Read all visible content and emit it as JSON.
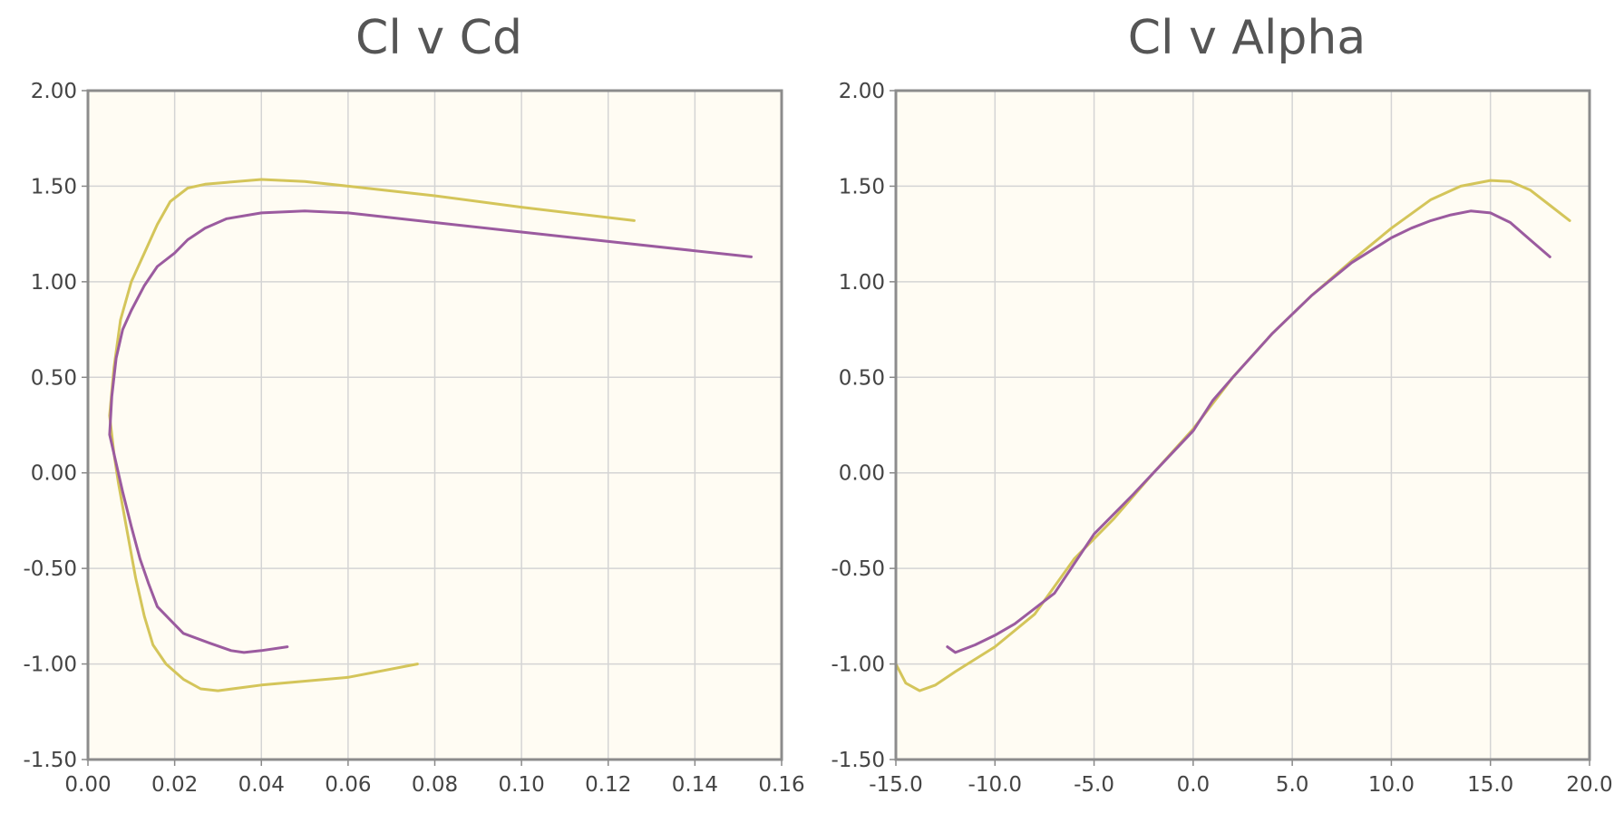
{
  "chart_data": [
    {
      "type": "line",
      "title": "Cl v Cd",
      "xlabel": "",
      "ylabel": "",
      "xlim": [
        0.0,
        0.16
      ],
      "ylim": [
        -1.5,
        2.0
      ],
      "x_ticks": [
        "0.00",
        "0.02",
        "0.04",
        "0.06",
        "0.08",
        "0.10",
        "0.12",
        "0.14",
        "0.16"
      ],
      "y_ticks": [
        "2.00",
        "1.50",
        "1.00",
        "0.50",
        "0.00",
        "-0.50",
        "-1.00",
        "-1.50"
      ],
      "grid": true,
      "background": "#fffcf3",
      "series": [
        {
          "color": "#d4c55a",
          "points": [
            [
              0.076,
              -1.0
            ],
            [
              0.06,
              -1.07
            ],
            [
              0.04,
              -1.11
            ],
            [
              0.03,
              -1.14
            ],
            [
              0.026,
              -1.13
            ],
            [
              0.022,
              -1.08
            ],
            [
              0.018,
              -1.0
            ],
            [
              0.015,
              -0.9
            ],
            [
              0.013,
              -0.75
            ],
            [
              0.011,
              -0.55
            ],
            [
              0.009,
              -0.3
            ],
            [
              0.007,
              -0.05
            ],
            [
              0.006,
              0.1
            ],
            [
              0.005,
              0.3
            ],
            [
              0.006,
              0.55
            ],
            [
              0.0075,
              0.8
            ],
            [
              0.01,
              1.0
            ],
            [
              0.013,
              1.15
            ],
            [
              0.016,
              1.3
            ],
            [
              0.019,
              1.42
            ],
            [
              0.023,
              1.49
            ],
            [
              0.027,
              1.51
            ],
            [
              0.032,
              1.52
            ],
            [
              0.04,
              1.535
            ],
            [
              0.05,
              1.525
            ],
            [
              0.06,
              1.5
            ],
            [
              0.08,
              1.45
            ],
            [
              0.1,
              1.39
            ],
            [
              0.126,
              1.32
            ]
          ]
        },
        {
          "color": "#9b5b9f",
          "points": [
            [
              0.046,
              -0.91
            ],
            [
              0.04,
              -0.93
            ],
            [
              0.036,
              -0.94
            ],
            [
              0.033,
              -0.93
            ],
            [
              0.028,
              -0.89
            ],
            [
              0.022,
              -0.84
            ],
            [
              0.019,
              -0.77
            ],
            [
              0.016,
              -0.7
            ],
            [
              0.014,
              -0.58
            ],
            [
              0.012,
              -0.45
            ],
            [
              0.01,
              -0.28
            ],
            [
              0.008,
              -0.1
            ],
            [
              0.0065,
              0.05
            ],
            [
              0.005,
              0.2
            ],
            [
              0.0055,
              0.4
            ],
            [
              0.0065,
              0.6
            ],
            [
              0.008,
              0.75
            ],
            [
              0.01,
              0.85
            ],
            [
              0.013,
              0.98
            ],
            [
              0.016,
              1.08
            ],
            [
              0.02,
              1.15
            ],
            [
              0.023,
              1.22
            ],
            [
              0.027,
              1.28
            ],
            [
              0.032,
              1.33
            ],
            [
              0.04,
              1.36
            ],
            [
              0.05,
              1.37
            ],
            [
              0.06,
              1.36
            ],
            [
              0.08,
              1.31
            ],
            [
              0.1,
              1.26
            ],
            [
              0.153,
              1.13
            ]
          ]
        }
      ]
    },
    {
      "type": "line",
      "title": "Cl v Alpha",
      "xlabel": "",
      "ylabel": "",
      "xlim": [
        -15.0,
        20.0
      ],
      "ylim": [
        -1.5,
        2.0
      ],
      "x_ticks": [
        "-15.0",
        "-10.0",
        "-5.0",
        "0.0",
        "5.0",
        "10.0",
        "15.0",
        "20.0"
      ],
      "y_ticks": [
        "2.00",
        "1.50",
        "1.00",
        "0.50",
        "0.00",
        "-0.50",
        "-1.00",
        "-1.50"
      ],
      "grid": true,
      "background": "#fffcf3",
      "series": [
        {
          "color": "#d4c55a",
          "points": [
            [
              -15.0,
              -1.0
            ],
            [
              -14.5,
              -1.1
            ],
            [
              -13.8,
              -1.14
            ],
            [
              -13.0,
              -1.11
            ],
            [
              -12.0,
              -1.04
            ],
            [
              -10.0,
              -0.91
            ],
            [
              -8.0,
              -0.74
            ],
            [
              -6.0,
              -0.45
            ],
            [
              -4.0,
              -0.24
            ],
            [
              -2.0,
              0.0
            ],
            [
              0.0,
              0.23
            ],
            [
              2.0,
              0.5
            ],
            [
              4.0,
              0.73
            ],
            [
              6.0,
              0.93
            ],
            [
              8.0,
              1.11
            ],
            [
              10.0,
              1.28
            ],
            [
              12.0,
              1.43
            ],
            [
              13.5,
              1.5
            ],
            [
              15.0,
              1.53
            ],
            [
              16.0,
              1.525
            ],
            [
              17.0,
              1.48
            ],
            [
              18.0,
              1.4
            ],
            [
              19.0,
              1.32
            ]
          ]
        },
        {
          "color": "#9b5b9f",
          "points": [
            [
              -12.4,
              -0.91
            ],
            [
              -12.0,
              -0.94
            ],
            [
              -11.0,
              -0.9
            ],
            [
              -10.0,
              -0.85
            ],
            [
              -9.0,
              -0.79
            ],
            [
              -7.0,
              -0.63
            ],
            [
              -5.0,
              -0.32
            ],
            [
              -3.0,
              -0.11
            ],
            [
              -2.0,
              0.0
            ],
            [
              0.0,
              0.22
            ],
            [
              1.0,
              0.38
            ],
            [
              2.0,
              0.5
            ],
            [
              4.0,
              0.73
            ],
            [
              6.0,
              0.93
            ],
            [
              8.0,
              1.1
            ],
            [
              10.0,
              1.23
            ],
            [
              11.0,
              1.28
            ],
            [
              12.0,
              1.32
            ],
            [
              13.0,
              1.35
            ],
            [
              14.0,
              1.37
            ],
            [
              15.0,
              1.36
            ],
            [
              16.0,
              1.31
            ],
            [
              17.0,
              1.22
            ],
            [
              18.0,
              1.13
            ]
          ]
        }
      ]
    }
  ]
}
